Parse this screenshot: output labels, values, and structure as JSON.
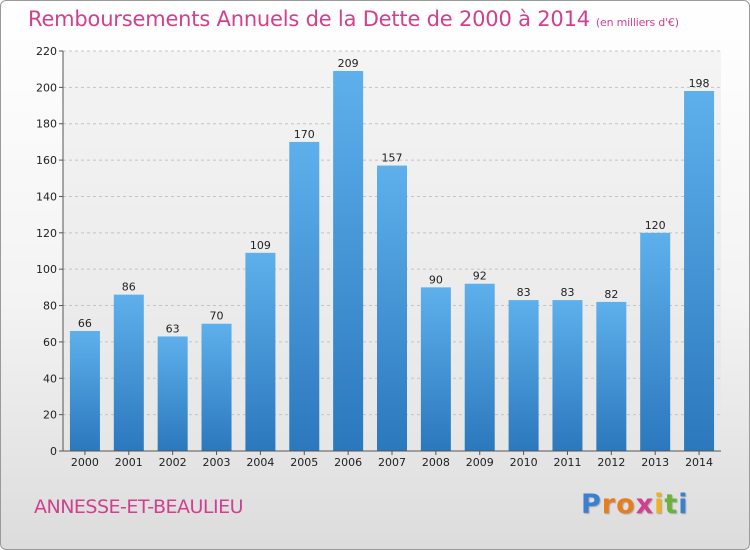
{
  "chart_data": {
    "type": "bar",
    "title": "Remboursements Annuels de la Dette de 2000 à 2014",
    "unit": "(en milliers d'€)",
    "categories": [
      "2000",
      "2001",
      "2002",
      "2003",
      "2004",
      "2005",
      "2006",
      "2007",
      "2008",
      "2009",
      "2010",
      "2011",
      "2012",
      "2013",
      "2014"
    ],
    "values": [
      66,
      86,
      63,
      70,
      109,
      170,
      209,
      157,
      90,
      92,
      83,
      83,
      82,
      120,
      198
    ],
    "ylim": [
      0,
      220
    ],
    "yticks": [
      0,
      20,
      40,
      60,
      80,
      100,
      120,
      140,
      160,
      180,
      200,
      220
    ],
    "grid": true,
    "bar_color": "#4a9fe0",
    "label_color": "#d1408f"
  },
  "footer": {
    "commune": "ANNESSE-ET-BEAULIEU",
    "logo": [
      "P",
      "r",
      "o",
      "x",
      "i",
      "t",
      "i"
    ],
    "logo_colors": [
      "#3a7fd0",
      "#e87d1e",
      "#e87d1e",
      "#d1408f",
      "#f2b01e",
      "#6bb23a",
      "#3a7fd0"
    ]
  }
}
